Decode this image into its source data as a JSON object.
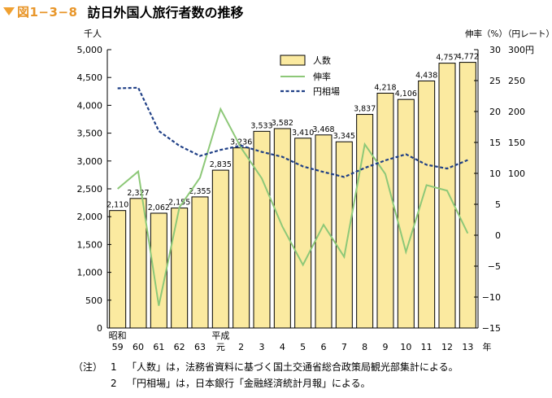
{
  "figure": {
    "number": "図1−3−8",
    "title": "訪日外国人旅行者数の推移"
  },
  "chart_data": {
    "type": "bar",
    "title": "訪日外国人旅行者数の推移",
    "left_axis": {
      "unit": "千人",
      "ylim": [
        0,
        5000
      ],
      "ticks": [
        "0",
        "500",
        "1,000",
        "1,500",
        "2,000",
        "2,500",
        "3,000",
        "3,500",
        "4,000",
        "4,500",
        "5,000"
      ]
    },
    "right_axis_rate": {
      "unit": "伸率（%）",
      "ylim": [
        -15,
        30
      ],
      "ticks": [
        "−15",
        "−10",
        "−5",
        "0",
        "5",
        "10",
        "15",
        "20",
        "25",
        "30"
      ]
    },
    "right_axis_yen": {
      "unit": "（円レート）",
      "ticks": [
        "100",
        "150",
        "200",
        "250",
        "300円"
      ],
      "tick_values": [
        100,
        150,
        200,
        250,
        300
      ]
    },
    "x_labels": [
      {
        "line1": "昭和",
        "line2": "59"
      },
      {
        "line1": "",
        "line2": "60"
      },
      {
        "line1": "",
        "line2": "61"
      },
      {
        "line1": "",
        "line2": "62"
      },
      {
        "line1": "",
        "line2": "63"
      },
      {
        "line1": "平成",
        "line2": "元"
      },
      {
        "line1": "",
        "line2": "2"
      },
      {
        "line1": "",
        "line2": "3"
      },
      {
        "line1": "",
        "line2": "4"
      },
      {
        "line1": "",
        "line2": "5"
      },
      {
        "line1": "",
        "line2": "6"
      },
      {
        "line1": "",
        "line2": "7"
      },
      {
        "line1": "",
        "line2": "8"
      },
      {
        "line1": "",
        "line2": "9"
      },
      {
        "line1": "",
        "line2": "10"
      },
      {
        "line1": "",
        "line2": "11"
      },
      {
        "line1": "",
        "line2": "12"
      },
      {
        "line1": "",
        "line2": "13"
      }
    ],
    "x_unit": "年",
    "series": [
      {
        "name": "人数",
        "kind": "bar",
        "axis": "left",
        "values": [
          2110,
          2327,
          2062,
          2155,
          2355,
          2835,
          3236,
          3533,
          3582,
          3410,
          3468,
          3345,
          3837,
          4218,
          4106,
          4438,
          4757,
          4772
        ],
        "labels": [
          "2,110",
          "2,327",
          "2,062",
          "2,155",
          "2,355",
          "2,835",
          "3,236",
          "3,533",
          "3,582",
          "3,410",
          "3,468",
          "3,345",
          "3,837",
          "4,218",
          "4,106",
          "4,438",
          "4,757",
          "4,772"
        ]
      },
      {
        "name": "伸率",
        "kind": "line",
        "axis": "rate",
        "values": [
          7.5,
          10.3,
          -11.4,
          4.5,
          9.3,
          20.4,
          14.1,
          9.2,
          1.4,
          -4.8,
          1.7,
          -3.5,
          14.7,
          9.9,
          -2.7,
          8.1,
          7.2,
          0.3
        ]
      },
      {
        "name": "円相場",
        "kind": "line",
        "axis": "yen",
        "values": [
          237.5,
          238.5,
          168.5,
          144.6,
          128.2,
          138.0,
          144.8,
          134.7,
          126.7,
          111.2,
          102.2,
          94.1,
          108.8,
          121.0,
          130.9,
          113.9,
          107.8,
          121.5
        ]
      }
    ],
    "legend": {
      "position": "top-right",
      "items": [
        "人数",
        "伸率",
        "円相場"
      ]
    },
    "colors": {
      "bar_fill": "#fbeaa0",
      "bar_stroke": "#000000",
      "rate_line": "#8dc878",
      "yen_line": "#1f3f86",
      "title_accent": "#e8962a"
    }
  },
  "notes": {
    "lead": "（注）",
    "items": [
      {
        "num": "1",
        "text": "「人数」は，法務省資料に基づく国土交通省総合政策局観光部集計による。"
      },
      {
        "num": "2",
        "text": "「円相場」は，日本銀行「金融経済統計月報」による。"
      }
    ]
  }
}
